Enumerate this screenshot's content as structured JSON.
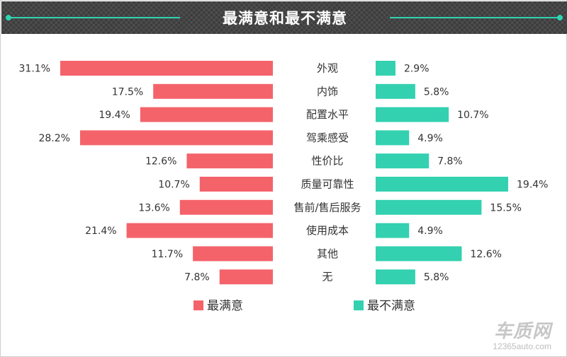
{
  "chart_data": {
    "type": "bar",
    "title": "最满意和最不满意",
    "categories": [
      "外观",
      "内饰",
      "配置水平",
      "驾乘感受",
      "性价比",
      "质量可靠性",
      "售前/售后服务",
      "使用成本",
      "其他",
      "无"
    ],
    "series": [
      {
        "name": "最满意",
        "color": "#f4636a",
        "values": [
          31.1,
          17.5,
          19.4,
          28.2,
          12.6,
          10.7,
          13.6,
          21.4,
          11.7,
          7.8
        ]
      },
      {
        "name": "最不满意",
        "color": "#33d1b0",
        "values": [
          2.9,
          5.8,
          10.7,
          4.9,
          7.8,
          19.4,
          15.5,
          4.9,
          12.6,
          5.8
        ]
      }
    ],
    "value_suffix": "%",
    "legend_position": "bottom-center",
    "grid": false
  },
  "watermark": {
    "logo": "车质网",
    "url": "12365auto.com"
  }
}
